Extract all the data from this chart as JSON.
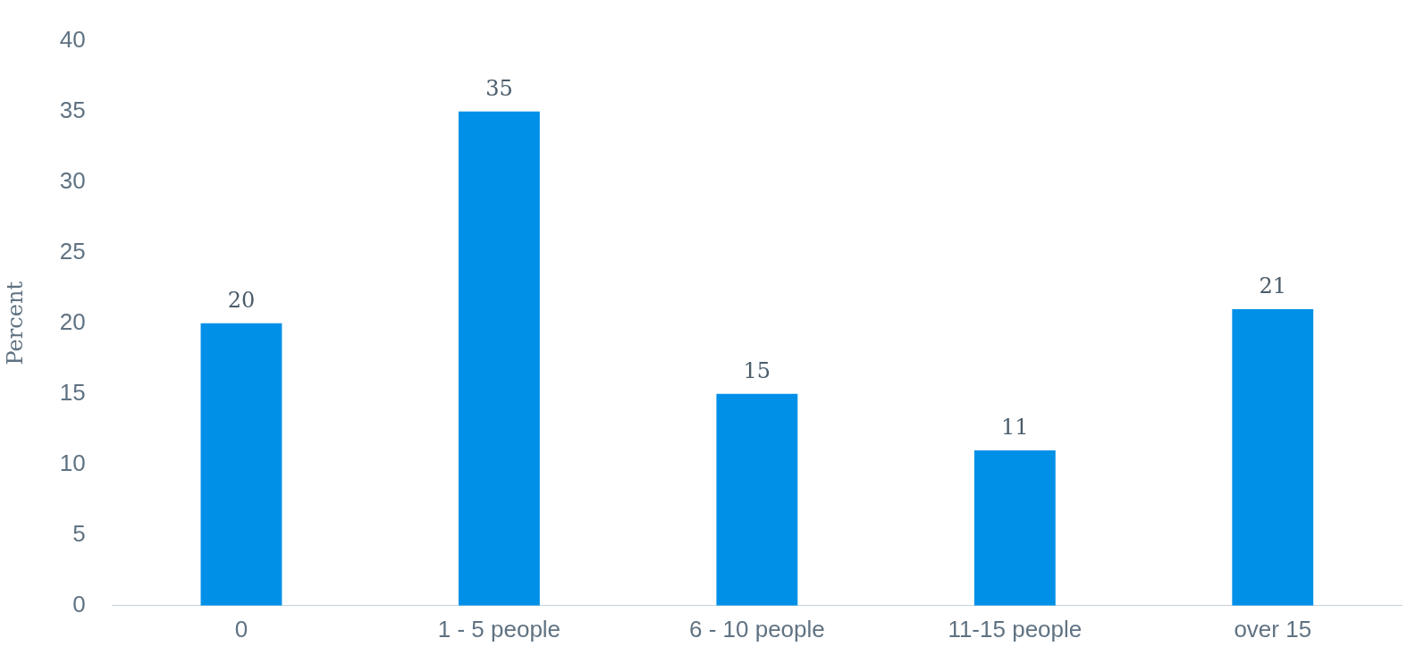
{
  "chart_data": {
    "type": "bar",
    "ylabel": "Percent",
    "categories": [
      "0",
      "1 - 5 people",
      "6 - 10 people",
      "11-15 people",
      "over 15"
    ],
    "values": [
      20,
      35,
      15,
      11,
      21
    ],
    "color": "#0190e8",
    "ylim": [
      0,
      40
    ],
    "yticks": [
      0,
      5,
      10,
      15,
      20,
      25,
      30,
      35,
      40
    ],
    "grid": false,
    "data_labels": true
  }
}
